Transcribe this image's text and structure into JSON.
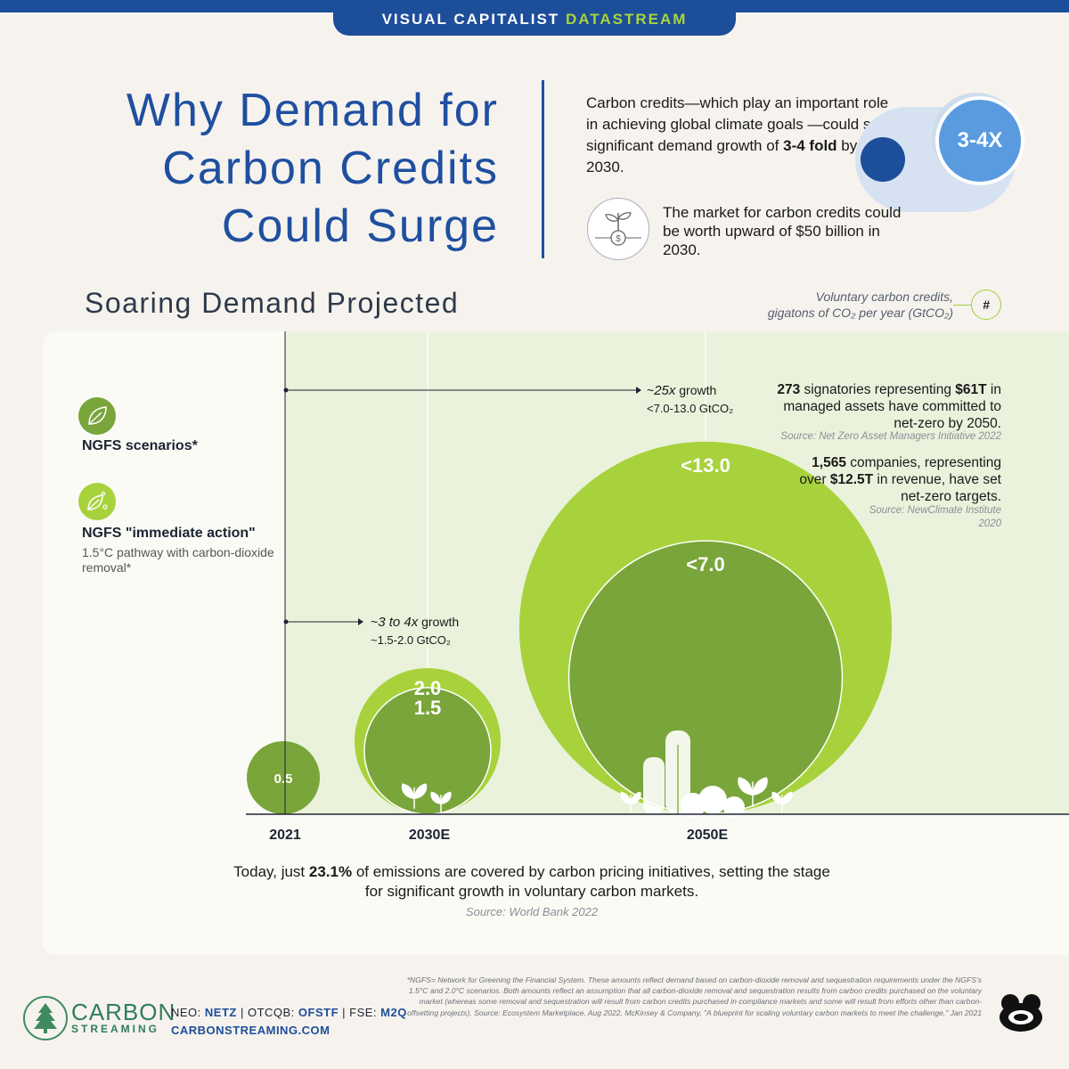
{
  "banner": {
    "prefix": "VISUAL CAPITALIST",
    "accent": "DATASTREAM"
  },
  "title": {
    "line1": "Why Demand for",
    "line2": "Carbon Credits",
    "line3": "Could Surge"
  },
  "intro": {
    "pre": "Carbon credits—which play an important role in achieving global climate goals —could see significant demand growth of ",
    "bold": "3-4 fold",
    "post": " by 2030.",
    "pill_value": "3-4X"
  },
  "market": {
    "text": "The market for carbon credits could be worth upward of $50 billion in 2030."
  },
  "section": {
    "title": "Soaring Demand Projected",
    "unit_line1": "Voluntary carbon credits,",
    "unit_line2": "gigatons of CO₂ per year (GtCO₂)",
    "unit_badge": "#"
  },
  "legend": {
    "item1": {
      "label": "NGFS scenarios*",
      "icon": "leaf-icon",
      "color": "#79a53a"
    },
    "item2": {
      "label": "NGFS \"immediate action\"",
      "sub": "1.5°C pathway with carbon-dioxide removal*",
      "icon": "leaf-sprout-icon",
      "color": "#a7d23c"
    }
  },
  "annotations": {
    "growth_2050_prefix": "~",
    "growth_2050_mult": "25x",
    "growth_2050_suffix": " growth",
    "growth_2050_range": "<7.0-13.0 GtCO₂",
    "growth_2030_prefix": "~",
    "growth_2030_mult": "3 to 4x",
    "growth_2030_suffix": " growth",
    "growth_2030_range": "~1.5-2.0 GtCO₂"
  },
  "notes": {
    "n1_a": "273",
    "n1_b": " signatories representing ",
    "n1_c": "$61T",
    "n1_d": " in managed assets have committed to net-zero by 2050.",
    "n1_src": "Source: Net Zero Asset Managers Initiative 2022",
    "n2_a": "1,565",
    "n2_b": " companies, representing over ",
    "n2_c": "$12.5T",
    "n2_d": " in revenue, have set net-zero targets.",
    "n2_src": "Source: NewClimate Institute 2020"
  },
  "chart_data": {
    "type": "bubble",
    "categories": [
      "2021",
      "2030E",
      "2050E"
    ],
    "series": [
      {
        "name": "NGFS scenarios*",
        "color": "#79a53a",
        "values": [
          0.5,
          1.5,
          7.0
        ],
        "labels": [
          "0.5",
          "1.5",
          "<7.0"
        ]
      },
      {
        "name": "NGFS \"immediate action\"",
        "color": "#a7d23c",
        "values": [
          null,
          2.0,
          13.0
        ],
        "labels": [
          "",
          "2.0",
          "<13.0"
        ]
      }
    ]
  },
  "summary": {
    "pre": "Today, just ",
    "bold": "23.1%",
    "post": " of emissions are covered by carbon pricing initiatives, setting the stage for significant growth in voluntary carbon markets.",
    "src": "Source: World Bank 2022"
  },
  "footer": {
    "logo_top": "CARBON",
    "logo_bottom": "STREAMING",
    "t1_label": "NEO: ",
    "t1": "NETZ",
    "t2_label": " | OTCQB: ",
    "t2": "OFSTF",
    "t3_label": " | FSE: ",
    "t3": "M2Q",
    "url": "CARBONSTREAMING.COM",
    "footnote": "*NGFS= Network for Greening the Financial System. These amounts reflect demand based on carbon-dioxide removal and sequestration requirements under the NGFS's 1.5°C and 2.0°C scenarios. Both amounts reflect an assumption that all carbon-dioxide removal and sequestration results from carbon credits purchased on the voluntary market (whereas some removal and sequestration will result from carbon credits purchased in compliance markets and some will result from efforts other than carbon-offsetting projects). Source: Ecosystem Marketplace, Aug 2022, McKinsey & Company, \"A blueprint for scaling voluntary carbon markets to meet the challenge,\" Jan 2021"
  }
}
